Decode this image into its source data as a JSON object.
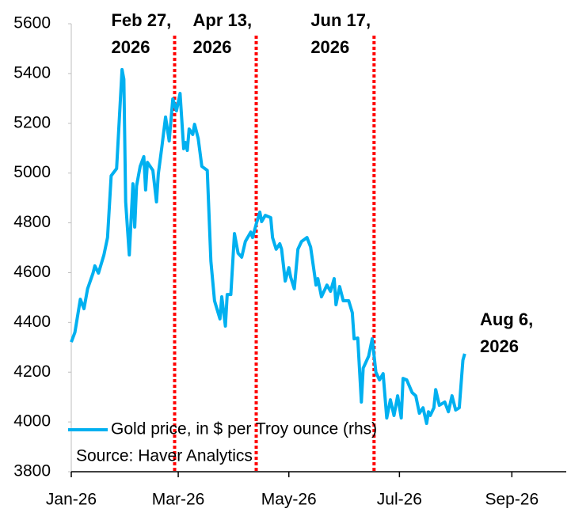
{
  "chart_data": {
    "type": "line",
    "series": [
      {
        "name": "Gold price, in $ per Troy ounce (rhs)",
        "color": "#00b0f0",
        "x": [
          0,
          2,
          5,
          7,
          9,
          12,
          13,
          15,
          18,
          20,
          22,
          25,
          28,
          29,
          30,
          32,
          34,
          35,
          36,
          38,
          40,
          41,
          42,
          45,
          47,
          48,
          50,
          52,
          54,
          56,
          58,
          60,
          62,
          63,
          64,
          65,
          67,
          68,
          70,
          72,
          75,
          77,
          79,
          82,
          83,
          85,
          86,
          88,
          90,
          92,
          94,
          96,
          99,
          100,
          102,
          104,
          105,
          107,
          110,
          111,
          113,
          115,
          116,
          118,
          120,
          121,
          123,
          125,
          127,
          130,
          132,
          135,
          136,
          138,
          141,
          143,
          145,
          146,
          148,
          150,
          153,
          155,
          156,
          158,
          160,
          161,
          164,
          166,
          168,
          170,
          172,
          174,
          176,
          178,
          180,
          182,
          183,
          185,
          188,
          190,
          192,
          194,
          196,
          197,
          198,
          200,
          201,
          203,
          206,
          208,
          210,
          212,
          214,
          216,
          217
        ],
        "values": [
          4321,
          4360,
          4493,
          4455,
          4535,
          4598,
          4627,
          4598,
          4671,
          4741,
          4989,
          5018,
          5416,
          5377,
          4884,
          4671,
          4957,
          4783,
          4948,
          5027,
          5066,
          4932,
          5043,
          5011,
          4884,
          4996,
          5107,
          5225,
          5129,
          5298,
          5250,
          5320,
          5098,
          5123,
          5091,
          5177,
          5155,
          5196,
          5139,
          5027,
          5011,
          4646,
          4487,
          4414,
          4503,
          4385,
          4512,
          4512,
          4757,
          4678,
          4662,
          4725,
          4763,
          4741,
          4795,
          4843,
          4805,
          4830,
          4821,
          4741,
          4694,
          4716,
          4694,
          4566,
          4620,
          4582,
          4535,
          4694,
          4725,
          4741,
          4703,
          4550,
          4576,
          4503,
          4550,
          4525,
          4576,
          4471,
          4544,
          4487,
          4487,
          4439,
          4334,
          4337,
          4080,
          4216,
          4264,
          4334,
          4200,
          4169,
          4194,
          4016,
          4089,
          4026,
          4105,
          4016,
          4175,
          4169,
          4118,
          4105,
          4035,
          4057,
          3994,
          4041,
          4026,
          4057,
          4130,
          4067,
          4080,
          4041,
          4105,
          4048,
          4057,
          4248,
          4274
        ]
      }
    ],
    "xlim": [
      0,
      273
    ],
    "xticks": [
      {
        "value": 0,
        "label": "Jan-26"
      },
      {
        "value": 59,
        "label": "Mar-26"
      },
      {
        "value": 120,
        "label": "May-26"
      },
      {
        "value": 181,
        "label": "Jul-26"
      },
      {
        "value": 243,
        "label": "Sep-26"
      }
    ],
    "ylim": [
      3800,
      5600
    ],
    "yticks": [
      3800,
      4000,
      4200,
      4400,
      4600,
      4800,
      5000,
      5200,
      5400,
      5600
    ],
    "markers": [
      {
        "x": 57,
        "label": [
          "Feb 27,",
          "2026"
        ]
      },
      {
        "x": 102,
        "label": [
          "Apr 13,",
          "2026"
        ]
      },
      {
        "x": 167,
        "label": [
          "Jun 17,",
          "2026"
        ]
      }
    ],
    "marker_color": "#ff0000",
    "end_label": [
      "Aug 6,",
      "2026"
    ],
    "source": "Source: Haver Analytics"
  }
}
